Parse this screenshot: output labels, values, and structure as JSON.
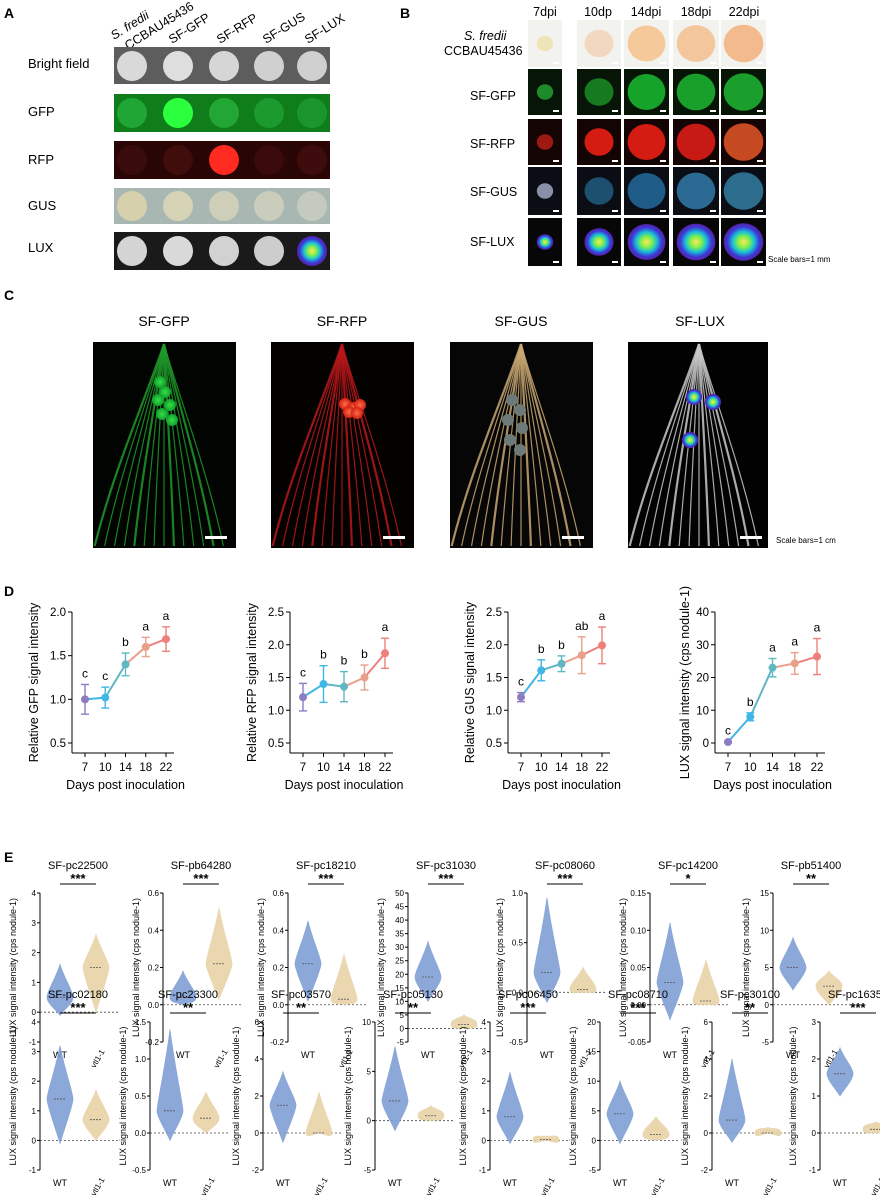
{
  "panelA": {
    "letter": "A",
    "strains": [
      "S. fredii CCBAU45436",
      "SF-GFP",
      "SF-RFP",
      "SF-GUS",
      "SF-LUX"
    ],
    "rows": [
      "Bright field",
      "GFP",
      "RFP",
      "GUS",
      "LUX"
    ]
  },
  "panelB": {
    "letter": "B",
    "days": [
      "7dpi",
      "10dp",
      "14dpi",
      "18dpi",
      "22dpi"
    ],
    "rows": [
      "S. fredii CCBAU45436",
      "SF-GFP",
      "SF-RFP",
      "SF-GUS",
      "SF-LUX"
    ],
    "scale_note": "Scale bars=1 mm"
  },
  "panelC": {
    "letter": "C",
    "titles": [
      "SF-GFP",
      "SF-RFP",
      "SF-GUS",
      "SF-LUX"
    ],
    "scale_note": "Scale bars=1 cm"
  },
  "panelD": {
    "letter": "D",
    "xlabel": "Days post inoculation",
    "xticks": [
      "7",
      "10",
      "14",
      "18",
      "22"
    ],
    "colors": [
      "#8e7cc3",
      "#3fb6e6",
      "#5fb8c2",
      "#e8a08a",
      "#ef7f7a"
    ]
  },
  "panelE": {
    "letter": "E",
    "ylabel": "LUX signal intensity (cps nodule-1)",
    "groups": [
      "WT",
      "vtl1-1"
    ],
    "colors": {
      "wt": "#7f9fd4",
      "mut": "#e8d3a8"
    }
  },
  "chart_data": [
    {
      "type": "line",
      "panel": "D",
      "ylabel": "Relative GFP signal intensity",
      "xlabel": "Days post inoculation",
      "x": [
        7,
        10,
        14,
        18,
        22
      ],
      "values": [
        1.0,
        1.02,
        1.4,
        1.6,
        1.69
      ],
      "errors": [
        0.17,
        0.12,
        0.13,
        0.11,
        0.14
      ],
      "letters": [
        "c",
        "c",
        "b",
        "a",
        "a"
      ],
      "ylim": [
        0.5,
        2.0
      ],
      "yticks": [
        "0.5",
        "1.0",
        "1.5",
        "2.0"
      ]
    },
    {
      "type": "line",
      "panel": "D",
      "ylabel": "Relative RFP signal intensity",
      "xlabel": "Days post inoculation",
      "x": [
        7,
        10,
        14,
        18,
        22
      ],
      "values": [
        1.2,
        1.4,
        1.36,
        1.5,
        1.87
      ],
      "errors": [
        0.21,
        0.28,
        0.23,
        0.19,
        0.23
      ],
      "letters": [
        "c",
        "b",
        "b",
        "b",
        "a"
      ],
      "ylim": [
        0.5,
        2.5
      ],
      "yticks": [
        "0.5",
        "1.0",
        "1.5",
        "2.0",
        "2.5"
      ]
    },
    {
      "type": "line",
      "panel": "D",
      "ylabel": "Relative GUS signal intensity",
      "xlabel": "Days post inoculation",
      "x": [
        7,
        10,
        14,
        18,
        22
      ],
      "values": [
        1.2,
        1.61,
        1.71,
        1.84,
        1.99
      ],
      "errors": [
        0.07,
        0.16,
        0.12,
        0.28,
        0.28
      ],
      "letters": [
        "c",
        "b",
        "b",
        "ab",
        "a"
      ],
      "ylim": [
        0.5,
        2.5
      ],
      "yticks": [
        "0.5",
        "1.0",
        "1.5",
        "2.0",
        "2.5"
      ]
    },
    {
      "type": "line",
      "panel": "D",
      "ylabel": "LUX signal intensity (cps nodule-1)",
      "xlabel": "Days post inoculation",
      "x": [
        7,
        10,
        14,
        18,
        22
      ],
      "values": [
        0.3,
        8,
        23,
        24.3,
        26.4
      ],
      "errors": [
        0.2,
        1.2,
        2.8,
        3.3,
        5.5
      ],
      "letters": [
        "c",
        "b",
        "a",
        "a",
        "a"
      ],
      "ylim": [
        0,
        40
      ],
      "yticks": [
        "0",
        "10",
        "20",
        "30",
        "40"
      ]
    },
    {
      "type": "violin",
      "panel": "E",
      "title": "SF-pc22500",
      "sig": "***",
      "ylim": [
        -1,
        4
      ],
      "yticks": [
        "-1",
        "0",
        "1",
        "2",
        "3",
        "4"
      ],
      "wt": {
        "median": 0.5,
        "min": -0.1,
        "max": 1.6
      },
      "mut": {
        "median": 1.5,
        "min": 0,
        "max": 2.6
      }
    },
    {
      "type": "violin",
      "panel": "E",
      "title": "SF-pb64280",
      "sig": "***",
      "ylim": [
        -0.2,
        0.6
      ],
      "yticks": [
        "-0.2",
        "0.0",
        "0.2",
        "0.4",
        "0.6"
      ],
      "wt": {
        "median": 0.04,
        "min": 0,
        "max": 0.18
      },
      "mut": {
        "median": 0.22,
        "min": 0.03,
        "max": 0.52
      }
    },
    {
      "type": "violin",
      "panel": "E",
      "title": "SF-pc18210",
      "sig": "***",
      "ylim": [
        -0.2,
        0.6
      ],
      "yticks": [
        "-0.2",
        "0.0",
        "0.2",
        "0.4",
        "0.6"
      ],
      "wt": {
        "median": 0.22,
        "min": 0.02,
        "max": 0.45
      },
      "mut": {
        "median": 0.03,
        "min": 0,
        "max": 0.27
      }
    },
    {
      "type": "violin",
      "panel": "E",
      "title": "SF-pc31030",
      "sig": "***",
      "ylim": [
        -5,
        50
      ],
      "yticks": [
        "-5",
        "0",
        "5",
        "10",
        "15",
        "20",
        "25",
        "30",
        "35",
        "40",
        "45",
        "50"
      ],
      "wt": {
        "median": 19,
        "min": 10,
        "max": 32
      },
      "mut": {
        "median": 1.5,
        "min": 0,
        "max": 5
      }
    },
    {
      "type": "violin",
      "panel": "E",
      "title": "SF-pc08060",
      "sig": "***",
      "ylim": [
        -0.5,
        1.0
      ],
      "yticks": [
        "-0.5",
        "0.0",
        "0.5",
        "1.0"
      ],
      "wt": {
        "median": 0.2,
        "min": -0.1,
        "max": 0.95
      },
      "mut": {
        "median": 0.03,
        "min": 0,
        "max": 0.25
      }
    },
    {
      "type": "violin",
      "panel": "E",
      "title": "SF-pc14200",
      "sig": "*",
      "ylim": [
        -0.05,
        0.15
      ],
      "yticks": [
        "-0.05",
        "0.00",
        "0.05",
        "0.10",
        "0.15"
      ],
      "wt": {
        "median": 0.03,
        "min": -0.02,
        "max": 0.11
      },
      "mut": {
        "median": 0.005,
        "min": 0,
        "max": 0.06
      }
    },
    {
      "type": "violin",
      "panel": "E",
      "title": "SF-pb51400",
      "sig": "**",
      "ylim": [
        -5,
        15
      ],
      "yticks": [
        "-5",
        "0",
        "5",
        "10",
        "15"
      ],
      "wt": {
        "median": 5,
        "min": 2,
        "max": 9
      },
      "mut": {
        "median": 2.5,
        "min": 0,
        "max": 4.5
      }
    },
    {
      "type": "violin",
      "panel": "E",
      "title": "SF-pc02180",
      "sig": "***",
      "ylim": [
        -1,
        4
      ],
      "yticks": [
        "-1",
        "0",
        "1",
        "2",
        "3",
        "4"
      ],
      "wt": {
        "median": 1.4,
        "min": -0.1,
        "max": 3.2
      },
      "mut": {
        "median": 0.7,
        "min": 0,
        "max": 1.7
      }
    },
    {
      "type": "violin",
      "panel": "E",
      "title": "SF-pc23300",
      "sig": "**",
      "ylim": [
        -0.5,
        1.5
      ],
      "yticks": [
        "-0.5",
        "0.0",
        "0.5",
        "1.0",
        "1.5"
      ],
      "wt": {
        "median": 0.3,
        "min": -0.1,
        "max": 1.4
      },
      "mut": {
        "median": 0.2,
        "min": 0,
        "max": 0.55
      }
    },
    {
      "type": "violin",
      "panel": "E",
      "title": "SF-pc03570",
      "sig": "**",
      "ylim": [
        -2,
        6
      ],
      "yticks": [
        "-2",
        "0",
        "2",
        "4",
        "6"
      ],
      "wt": {
        "median": 1.5,
        "min": -0.5,
        "max": 3.3
      },
      "mut": {
        "median": 0,
        "min": 0,
        "max": 2.2
      }
    },
    {
      "type": "violin",
      "panel": "E",
      "title": "SF-pc05130",
      "sig": "**",
      "ylim": [
        -5,
        10
      ],
      "yticks": [
        "-5",
        "0",
        "5",
        "10"
      ],
      "wt": {
        "median": 2,
        "min": -1,
        "max": 7.5
      },
      "mut": {
        "median": 0.5,
        "min": 0,
        "max": 1.5
      }
    },
    {
      "type": "violin",
      "panel": "E",
      "title": "SF-pc06450",
      "sig": "***",
      "ylim": [
        -1,
        4
      ],
      "yticks": [
        "-1",
        "0",
        "1",
        "2",
        "3",
        "4"
      ],
      "wt": {
        "median": 0.8,
        "min": -0.1,
        "max": 2.3
      },
      "mut": {
        "median": 0.03,
        "min": 0,
        "max": 0.15
      }
    },
    {
      "type": "violin",
      "panel": "E",
      "title": "SF-pc08710",
      "sig": "***",
      "ylim": [
        -5,
        20
      ],
      "yticks": [
        "-5",
        "0",
        "5",
        "10",
        "15",
        "20"
      ],
      "wt": {
        "median": 4.5,
        "min": -0.5,
        "max": 10
      },
      "mut": {
        "median": 1,
        "min": 0,
        "max": 4
      }
    },
    {
      "type": "violin",
      "panel": "E",
      "title": "SF-pc30100",
      "sig": "**",
      "ylim": [
        -2,
        6
      ],
      "yticks": [
        "-2",
        "0",
        "2",
        "4",
        "6"
      ],
      "wt": {
        "median": 0.7,
        "min": -0.5,
        "max": 4
      },
      "mut": {
        "median": 0,
        "min": 0,
        "max": 0.3
      }
    },
    {
      "type": "violin",
      "panel": "E",
      "title": "SF-pc16350",
      "sig": "***",
      "ylim": [
        -1,
        3
      ],
      "yticks": [
        "-1",
        "0",
        "1",
        "2",
        "3"
      ],
      "wt": {
        "median": 1.6,
        "min": 1,
        "max": 2.3
      },
      "mut": {
        "median": 0.1,
        "min": 0,
        "max": 0.3
      }
    }
  ]
}
